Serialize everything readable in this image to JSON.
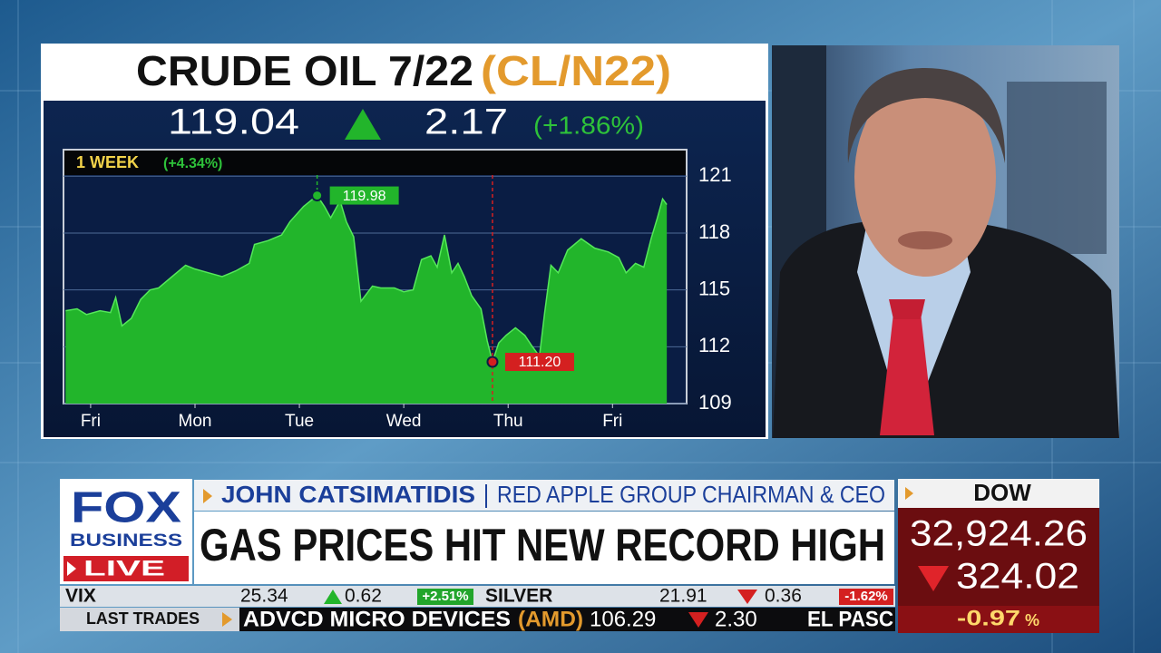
{
  "header": {
    "quote_last": "119.04",
    "quote_change": "2.17",
    "quote_change_pct": "(+1.86%)"
  },
  "chart_data": {
    "type": "area",
    "title": "CRUDE OIL 7/22",
    "subtitle": "(CL/N22)",
    "period_label": "1 WEEK",
    "period_change": "(+4.34%)",
    "x": [
      -0.24,
      -0.13,
      -0.04,
      0.09,
      0.19,
      0.24,
      0.3,
      0.39,
      0.48,
      0.57,
      0.65,
      0.78,
      0.91,
      1.0,
      1.13,
      1.26,
      1.39,
      1.52,
      1.57,
      1.7,
      1.83,
      1.91,
      2.04,
      2.17,
      2.24,
      2.3,
      2.39,
      2.45,
      2.52,
      2.59,
      2.7,
      2.78,
      2.91,
      3.0,
      3.09,
      3.17,
      3.26,
      3.32,
      3.39,
      3.46,
      3.52,
      3.58,
      3.65,
      3.74,
      3.8,
      3.85,
      3.91,
      3.98,
      4.07,
      4.16,
      4.22,
      4.3,
      4.35,
      4.41,
      4.48,
      4.57,
      4.7,
      4.83,
      4.96,
      5.06,
      5.13,
      5.22,
      5.3,
      5.37,
      5.43,
      5.48,
      5.52
    ],
    "values": [
      113.9,
      114.0,
      113.7,
      113.9,
      113.8,
      114.6,
      113.1,
      113.5,
      114.5,
      115.0,
      115.1,
      115.7,
      116.3,
      116.1,
      115.9,
      115.7,
      116.0,
      116.4,
      117.4,
      117.6,
      117.9,
      118.6,
      119.4,
      119.98,
      119.4,
      118.8,
      119.7,
      118.6,
      117.8,
      114.4,
      115.2,
      115.1,
      115.1,
      114.9,
      115.0,
      116.6,
      116.8,
      116.2,
      117.9,
      115.9,
      116.4,
      115.7,
      114.7,
      114.0,
      112.3,
      111.2,
      112.2,
      112.6,
      113.0,
      112.6,
      112.1,
      111.5,
      113.8,
      116.3,
      115.9,
      117.1,
      117.7,
      117.2,
      117.0,
      116.7,
      115.9,
      116.4,
      116.2,
      117.7,
      118.8,
      119.8,
      119.5
    ],
    "color": "#22b52b",
    "xlim": [
      -0.26,
      5.71
    ],
    "xticks": [
      {
        "value": 0,
        "label": "Fri"
      },
      {
        "value": 1,
        "label": "Mon"
      },
      {
        "value": 2,
        "label": "Tue"
      },
      {
        "value": 3,
        "label": "Wed"
      },
      {
        "value": 4,
        "label": "Thu"
      },
      {
        "value": 5,
        "label": "Fri"
      }
    ],
    "ylim": [
      109,
      122.4
    ],
    "yticks": [
      109,
      112,
      115,
      118,
      121
    ],
    "grid": true,
    "annotations": [
      {
        "x": 2.17,
        "y": 119.98,
        "label": "119.98",
        "color": "#22b52b"
      },
      {
        "x": 3.85,
        "y": 111.2,
        "label": "111.20",
        "color": "#d42020"
      }
    ]
  },
  "lower_third": {
    "logo_top": "FOX",
    "logo_bottom": "BUSINESS",
    "live": "LIVE",
    "guest_name": "JOHN CATSIMATIDIS",
    "guest_title": "RED APPLE GROUP CHAIRMAN & CEO",
    "headline": "GAS PRICES HIT NEW RECORD HIGH"
  },
  "dow": {
    "label": "DOW",
    "value": "32,924.26",
    "change": "324.02",
    "change_pct": "-0.97",
    "pct_sign": "%"
  },
  "ticker": {
    "row1": [
      "VIX",
      "25.34",
      "0.62",
      "+2.51%",
      "SILVER",
      "21.91",
      "0.36",
      "-1.62%"
    ],
    "section": "LAST TRADES",
    "row2": [
      "ADVCD MICRO DEVICES",
      "(AMD)",
      "106.29",
      "2.30",
      "EL PASC"
    ]
  }
}
